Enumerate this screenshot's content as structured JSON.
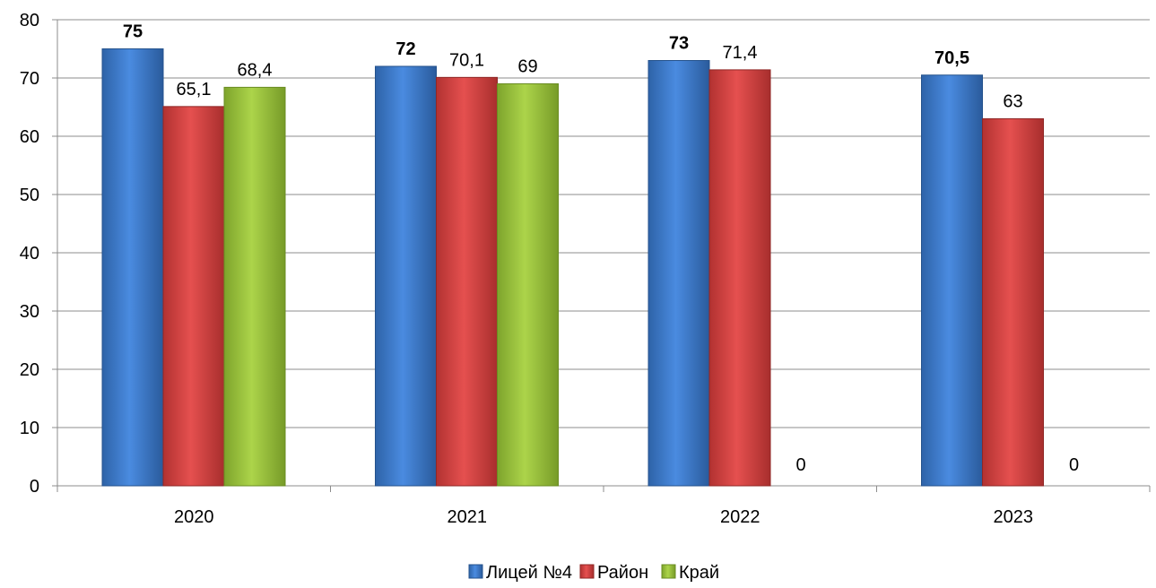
{
  "chart_data": {
    "type": "bar",
    "categories": [
      "2020",
      "2021",
      "2022",
      "2023"
    ],
    "series": [
      {
        "name": "Лицей №4",
        "values": [
          75,
          72,
          73,
          70.5
        ],
        "labels": [
          "75",
          "72",
          "73",
          "70,5"
        ],
        "label_bold": true
      },
      {
        "name": "Район",
        "values": [
          65.1,
          70.1,
          71.4,
          63
        ],
        "labels": [
          "65,1",
          "70,1",
          "71,4",
          "63"
        ],
        "label_bold": false
      },
      {
        "name": "Край",
        "values": [
          68.4,
          69,
          0,
          0
        ],
        "labels": [
          "68,4",
          "69",
          "0",
          "0"
        ],
        "label_bold": false
      }
    ],
    "ylim": [
      0,
      80
    ],
    "yticks": [
      "0",
      "10",
      "20",
      "30",
      "40",
      "50",
      "60",
      "70",
      "80"
    ],
    "grid": true,
    "legend": "bottom",
    "colors": {
      "Лицей №4": "#3f7fd0",
      "Район": "#d9403f",
      "Край": "#9ac43a"
    }
  }
}
